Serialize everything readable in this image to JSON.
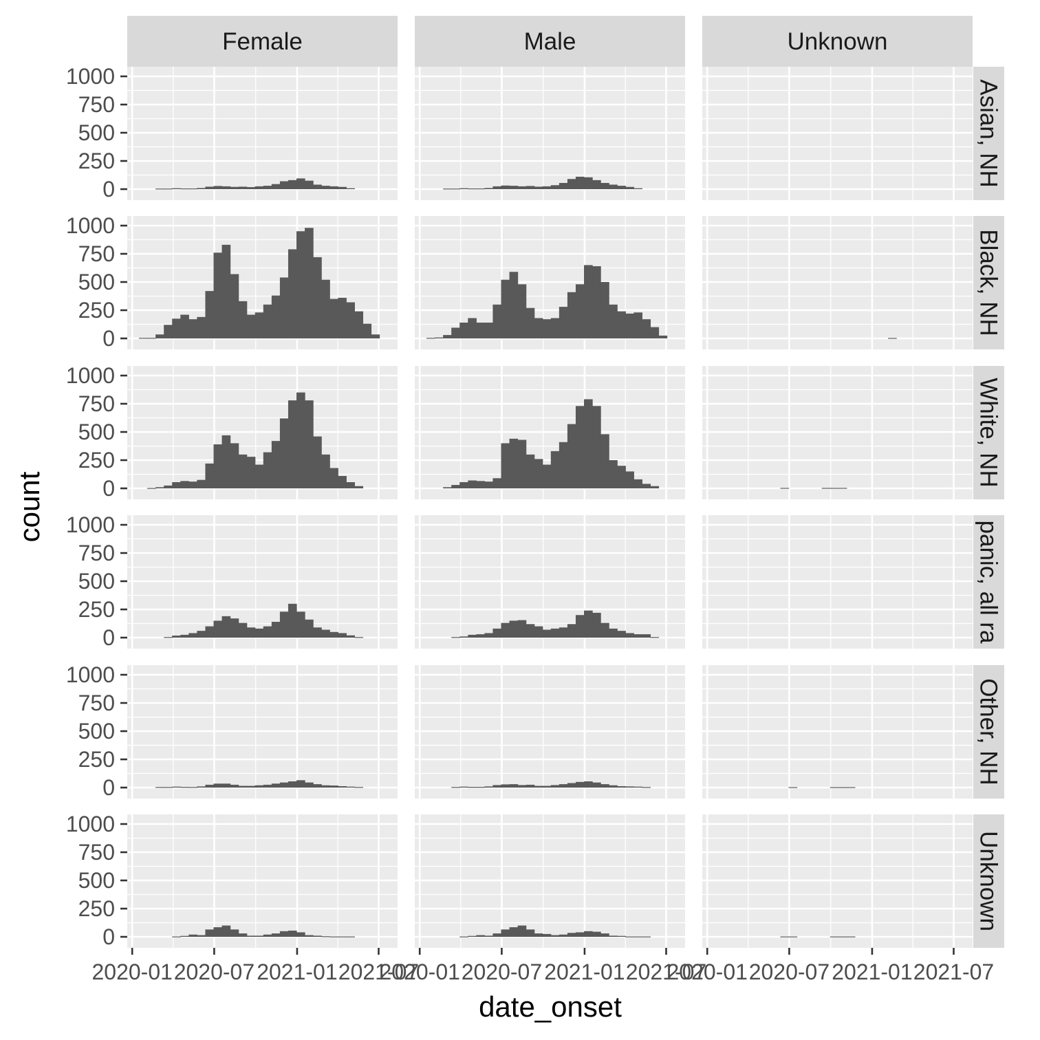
{
  "chart_data": {
    "type": "bar",
    "subtype": "faceted-histogram",
    "xlabel": "date_onset",
    "ylabel": "count",
    "ylim": [
      0,
      1000
    ],
    "y_ticks": [
      "0",
      "250",
      "500",
      "750",
      "1000"
    ],
    "x_tick_labels": [
      "2020-01",
      "2020-07",
      "2021-01",
      "2021-07"
    ],
    "x_range": [
      "2019-12-21",
      "2021-08-12"
    ],
    "bin_start": "2020-01-16",
    "bin_width_days": 18.4,
    "bar_color": "#595959",
    "panel_background": "#ebebeb",
    "grid": true,
    "legend": "none",
    "col_facets": [
      "Female",
      "Male",
      "Unknown"
    ],
    "row_facets": [
      "Asian, NH",
      "Black, NH",
      "White, NH",
      "panic, all ra",
      "Other, NH",
      "Unknown"
    ],
    "panels": [
      [
        [
          0,
          0,
          5,
          5,
          8,
          6,
          6,
          10,
          22,
          28,
          25,
          20,
          22,
          18,
          25,
          30,
          45,
          70,
          80,
          95,
          75,
          40,
          30,
          25,
          20,
          8,
          0
        ],
        [
          5,
          5,
          35,
          120,
          175,
          210,
          170,
          190,
          420,
          760,
          830,
          570,
          330,
          210,
          230,
          300,
          380,
          540,
          790,
          950,
          980,
          720,
          520,
          350,
          360,
          320,
          240,
          130,
          35
        ],
        [
          0,
          3,
          10,
          25,
          55,
          65,
          60,
          75,
          220,
          390,
          470,
          400,
          300,
          280,
          210,
          320,
          420,
          620,
          780,
          850,
          780,
          460,
          300,
          180,
          110,
          55,
          20
        ],
        [
          0,
          0,
          0,
          5,
          18,
          25,
          40,
          60,
          100,
          150,
          190,
          170,
          130,
          90,
          80,
          100,
          140,
          230,
          300,
          230,
          160,
          90,
          70,
          50,
          40,
          20,
          5
        ],
        [
          0,
          0,
          5,
          5,
          8,
          6,
          5,
          10,
          25,
          35,
          35,
          25,
          15,
          15,
          20,
          25,
          35,
          45,
          55,
          65,
          45,
          30,
          20,
          18,
          12,
          8,
          5
        ],
        [
          0,
          0,
          0,
          0,
          3,
          8,
          20,
          15,
          65,
          85,
          100,
          65,
          30,
          10,
          10,
          20,
          30,
          50,
          55,
          40,
          15,
          10,
          5,
          3,
          3,
          3,
          0
        ]
      ],
      [
        [
          0,
          0,
          5,
          5,
          8,
          6,
          6,
          10,
          25,
          32,
          30,
          25,
          28,
          22,
          25,
          35,
          55,
          90,
          110,
          105,
          80,
          55,
          40,
          30,
          20,
          8,
          0
        ],
        [
          5,
          8,
          30,
          95,
          140,
          180,
          140,
          140,
          300,
          520,
          590,
          480,
          270,
          180,
          170,
          180,
          280,
          410,
          480,
          650,
          640,
          500,
          300,
          240,
          220,
          230,
          170,
          100,
          25
        ],
        [
          0,
          0,
          10,
          30,
          55,
          70,
          65,
          60,
          90,
          400,
          440,
          430,
          300,
          260,
          210,
          330,
          410,
          570,
          730,
          790,
          730,
          480,
          250,
          200,
          150,
          80,
          40,
          20
        ],
        [
          0,
          0,
          0,
          5,
          10,
          25,
          30,
          40,
          80,
          130,
          150,
          155,
          120,
          100,
          70,
          80,
          90,
          120,
          200,
          240,
          220,
          130,
          80,
          60,
          40,
          30,
          30,
          5
        ],
        [
          0,
          0,
          0,
          5,
          8,
          6,
          6,
          10,
          22,
          28,
          30,
          22,
          25,
          15,
          15,
          22,
          30,
          40,
          50,
          55,
          45,
          30,
          20,
          12,
          10,
          8,
          5
        ],
        [
          0,
          0,
          0,
          0,
          3,
          8,
          15,
          10,
          30,
          65,
          85,
          100,
          65,
          30,
          25,
          15,
          20,
          35,
          40,
          50,
          45,
          30,
          10,
          8,
          3,
          3,
          3,
          0
        ]
      ],
      [
        [],
        [
          0,
          0,
          0,
          0,
          0,
          0,
          0,
          0,
          0,
          0,
          0,
          0,
          0,
          0,
          0,
          0,
          0,
          0,
          0,
          0,
          0,
          4,
          0,
          0,
          0,
          0,
          0,
          0
        ],
        [
          0,
          0,
          0,
          0,
          0,
          0,
          0,
          0,
          4,
          0,
          0,
          0,
          0,
          4,
          4,
          4,
          0,
          0,
          0,
          0,
          0,
          0,
          0,
          0,
          0
        ],
        [],
        [
          0,
          0,
          0,
          0,
          0,
          0,
          0,
          0,
          0,
          4,
          0,
          0,
          0,
          0,
          4,
          4,
          4,
          0,
          0,
          0,
          0,
          0,
          0
        ],
        [
          0,
          0,
          0,
          0,
          0,
          0,
          0,
          0,
          3,
          3,
          0,
          0,
          0,
          0,
          3,
          3,
          3,
          0,
          0,
          0
        ]
      ]
    ]
  }
}
